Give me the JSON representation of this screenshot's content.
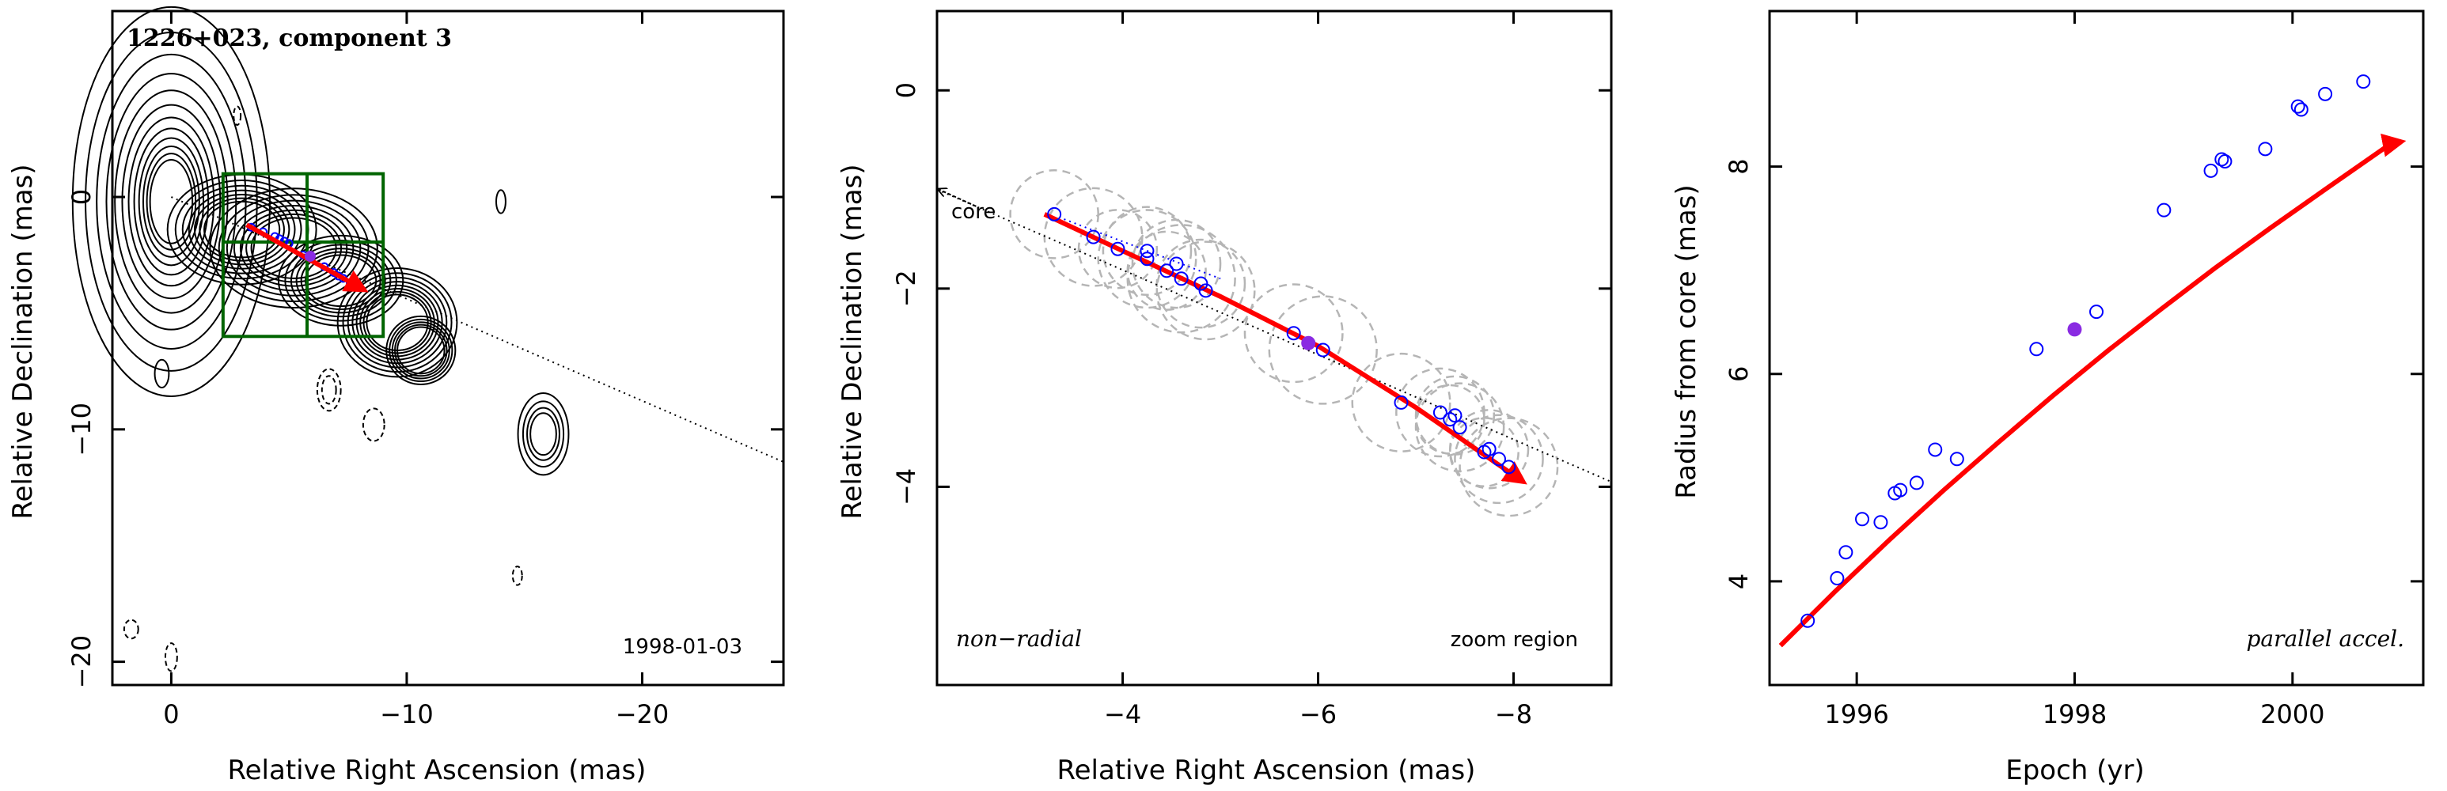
{
  "chart_data": [
    {
      "type": "contour",
      "title": "1226+023, component 3",
      "xlabel": "Relative Right Ascension (mas)",
      "ylabel": "Relative Declination (mas)",
      "xlim": [
        2.5,
        -26
      ],
      "ylim": [
        -21,
        8
      ],
      "xticks": [
        0,
        -10,
        -20
      ],
      "yticks": [
        -20,
        -10,
        0
      ],
      "xtick_labels": [
        "0",
        "−10",
        "−20"
      ],
      "ytick_labels": [
        "−20",
        "−10",
        "0"
      ],
      "epoch_label": "1998-01-03",
      "zoom_box": {
        "x_range": [
          -2.2,
          -9
        ],
        "y_range": [
          1,
          -6
        ]
      },
      "core_line": {
        "from": [
          0,
          0
        ],
        "to": [
          -26,
          -11.4
        ]
      },
      "component_points": [
        {
          "x": -3.4,
          "y": -1.3
        },
        {
          "x": -3.9,
          "y": -1.5
        },
        {
          "x": -4.4,
          "y": -1.7
        },
        {
          "x": -4.6,
          "y": -1.8
        },
        {
          "x": -4.8,
          "y": -1.9
        },
        {
          "x": -5.0,
          "y": -2.0
        },
        {
          "x": -5.6,
          "y": -2.5
        },
        {
          "x": -5.9,
          "y": -2.55
        },
        {
          "x": -6.5,
          "y": -3.0
        },
        {
          "x": -6.9,
          "y": -3.25
        },
        {
          "x": -7.1,
          "y": -3.4
        },
        {
          "x": -7.3,
          "y": -3.5
        },
        {
          "x": -7.6,
          "y": -3.7
        },
        {
          "x": -7.8,
          "y": -3.8
        }
      ],
      "highlight_point": {
        "x": -5.9,
        "y": -2.55
      },
      "trajectory": {
        "from": [
          -3.2,
          -1.2
        ],
        "to": [
          -8.2,
          -4.0
        ]
      }
    },
    {
      "type": "scatter",
      "xlabel": "Relative Right Ascension (mas)",
      "ylabel": "Relative Declination (mas)",
      "xlim": [
        -2.1,
        -9
      ],
      "ylim": [
        -6,
        0.8
      ],
      "xticks": [
        -4,
        -6,
        -8
      ],
      "yticks": [
        -4,
        -2,
        0
      ],
      "xtick_labels": [
        "−4",
        "−6",
        "−8"
      ],
      "ytick_labels": [
        "−4",
        "−2",
        "0"
      ],
      "core_label": "core",
      "left_label": "non−radial",
      "right_label": "zoom region",
      "points": [
        {
          "x": -3.3,
          "y": -1.25,
          "r": 0.45
        },
        {
          "x": -3.7,
          "y": -1.48,
          "r": 0.5
        },
        {
          "x": -3.95,
          "y": -1.6,
          "r": 0.4
        },
        {
          "x": -4.25,
          "y": -1.62,
          "r": 0.45
        },
        {
          "x": -4.25,
          "y": -1.7,
          "r": 0.5
        },
        {
          "x": -4.45,
          "y": -1.82,
          "r": 0.4
        },
        {
          "x": -4.55,
          "y": -1.75,
          "r": 0.45
        },
        {
          "x": -4.6,
          "y": -1.9,
          "r": 0.55
        },
        {
          "x": -4.8,
          "y": -1.95,
          "r": 0.45
        },
        {
          "x": -4.85,
          "y": -2.02,
          "r": 0.5
        },
        {
          "x": -5.75,
          "y": -2.45,
          "r": 0.5
        },
        {
          "x": -6.05,
          "y": -2.62,
          "r": 0.55
        },
        {
          "x": -6.85,
          "y": -3.15,
          "r": 0.5
        },
        {
          "x": -7.25,
          "y": -3.25,
          "r": 0.45
        },
        {
          "x": -7.35,
          "y": -3.32,
          "r": 0.35
        },
        {
          "x": -7.4,
          "y": -3.28,
          "r": 0.4
        },
        {
          "x": -7.45,
          "y": -3.4,
          "r": 0.45
        },
        {
          "x": -7.7,
          "y": -3.65,
          "r": 0.35
        },
        {
          "x": -7.75,
          "y": -3.62,
          "r": 0.4
        },
        {
          "x": -7.85,
          "y": -3.72,
          "r": 0.45
        },
        {
          "x": -7.95,
          "y": -3.8,
          "r": 0.5
        }
      ],
      "highlight_point": {
        "x": -5.9,
        "y": -2.55
      },
      "trajectory": [
        [
          -3.2,
          -1.25
        ],
        [
          -4.0,
          -1.62
        ],
        [
          -5.0,
          -2.08
        ],
        [
          -6.0,
          -2.58
        ],
        [
          -7.0,
          -3.2
        ],
        [
          -8.1,
          -3.95
        ]
      ],
      "core_line": {
        "from": [
          -2.1,
          -1.0
        ],
        "to": [
          -9.0,
          -3.95
        ]
      },
      "core_arrow": {
        "from": [
          -2.5,
          -1.17
        ],
        "to": [
          -2.12,
          -1.0
        ]
      },
      "blue_dotted": {
        "from": [
          -3.4,
          -1.3
        ],
        "to": [
          -5.0,
          -1.9
        ]
      }
    },
    {
      "type": "scatter",
      "xlabel": "Epoch (yr)",
      "ylabel": "Radius from core (mas)",
      "xlim": [
        1995.2,
        2001.2
      ],
      "ylim": [
        3,
        9.5
      ],
      "xticks": [
        1996,
        1998,
        2000
      ],
      "yticks": [
        4,
        6,
        8
      ],
      "xtick_labels": [
        "1996",
        "1998",
        "2000"
      ],
      "ytick_labels": [
        "4",
        "6",
        "8"
      ],
      "annotation": "parallel accel.",
      "points": [
        {
          "x": 1995.55,
          "y": 3.62
        },
        {
          "x": 1995.82,
          "y": 4.03
        },
        {
          "x": 1995.9,
          "y": 4.28
        },
        {
          "x": 1996.05,
          "y": 4.6
        },
        {
          "x": 1996.22,
          "y": 4.57
        },
        {
          "x": 1996.35,
          "y": 4.85
        },
        {
          "x": 1996.4,
          "y": 4.88
        },
        {
          "x": 1996.55,
          "y": 4.95
        },
        {
          "x": 1996.72,
          "y": 5.27
        },
        {
          "x": 1996.92,
          "y": 5.18
        },
        {
          "x": 1997.65,
          "y": 6.24
        },
        {
          "x": 1998.2,
          "y": 6.6
        },
        {
          "x": 1998.82,
          "y": 7.58
        },
        {
          "x": 1999.25,
          "y": 7.96
        },
        {
          "x": 1999.35,
          "y": 8.07
        },
        {
          "x": 1999.38,
          "y": 8.05
        },
        {
          "x": 1999.75,
          "y": 8.17
        },
        {
          "x": 2000.05,
          "y": 8.58
        },
        {
          "x": 2000.08,
          "y": 8.55
        },
        {
          "x": 2000.3,
          "y": 8.7
        },
        {
          "x": 2000.65,
          "y": 8.82
        }
      ],
      "highlight_point": {
        "x": 1998.0,
        "y": 6.43
      },
      "fit_curve": [
        [
          1995.3,
          3.38
        ],
        [
          1995.8,
          3.9
        ],
        [
          1996.3,
          4.4
        ],
        [
          1996.8,
          4.88
        ],
        [
          1997.3,
          5.34
        ],
        [
          1997.8,
          5.79
        ],
        [
          1998.3,
          6.22
        ],
        [
          1998.8,
          6.63
        ],
        [
          1999.3,
          7.03
        ],
        [
          1999.8,
          7.41
        ],
        [
          2000.3,
          7.78
        ],
        [
          2000.9,
          8.22
        ],
        [
          2001.0,
          8.24
        ]
      ]
    }
  ],
  "colors": {
    "trajectory": "#ff0000",
    "points": "#0000ff",
    "highlight": "#8a2be2",
    "zoom_box": "#006400",
    "circles": "#b5b5b5",
    "contours": "#000000"
  }
}
